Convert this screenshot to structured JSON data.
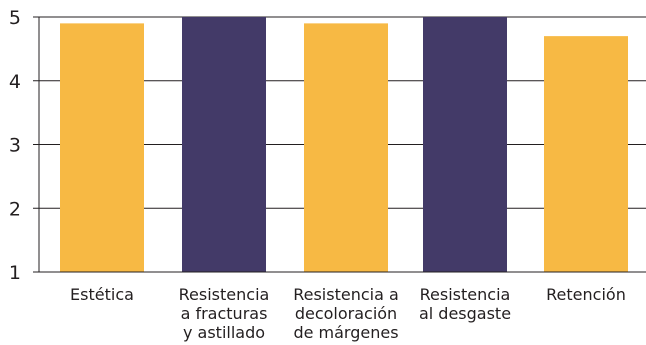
{
  "chart_data": {
    "type": "bar",
    "categories": [
      [
        "Estética"
      ],
      [
        "Resistencia",
        "a fracturas",
        "y astillado"
      ],
      [
        "Resistencia a",
        "decoloración",
        "de márgenes"
      ],
      [
        "Resistencia",
        "al desgaste"
      ],
      [
        "Retención"
      ]
    ],
    "values": [
      4.9,
      5.0,
      4.9,
      5.0,
      4.7
    ],
    "bar_colors": [
      "#f7b944",
      "#433a68",
      "#f7b944",
      "#433a68",
      "#f7b944"
    ],
    "y_ticks": [
      1,
      2,
      3,
      4,
      5
    ],
    "ylim": [
      1,
      5
    ],
    "grid": true,
    "title": "",
    "xlabel": "",
    "ylabel": ""
  }
}
